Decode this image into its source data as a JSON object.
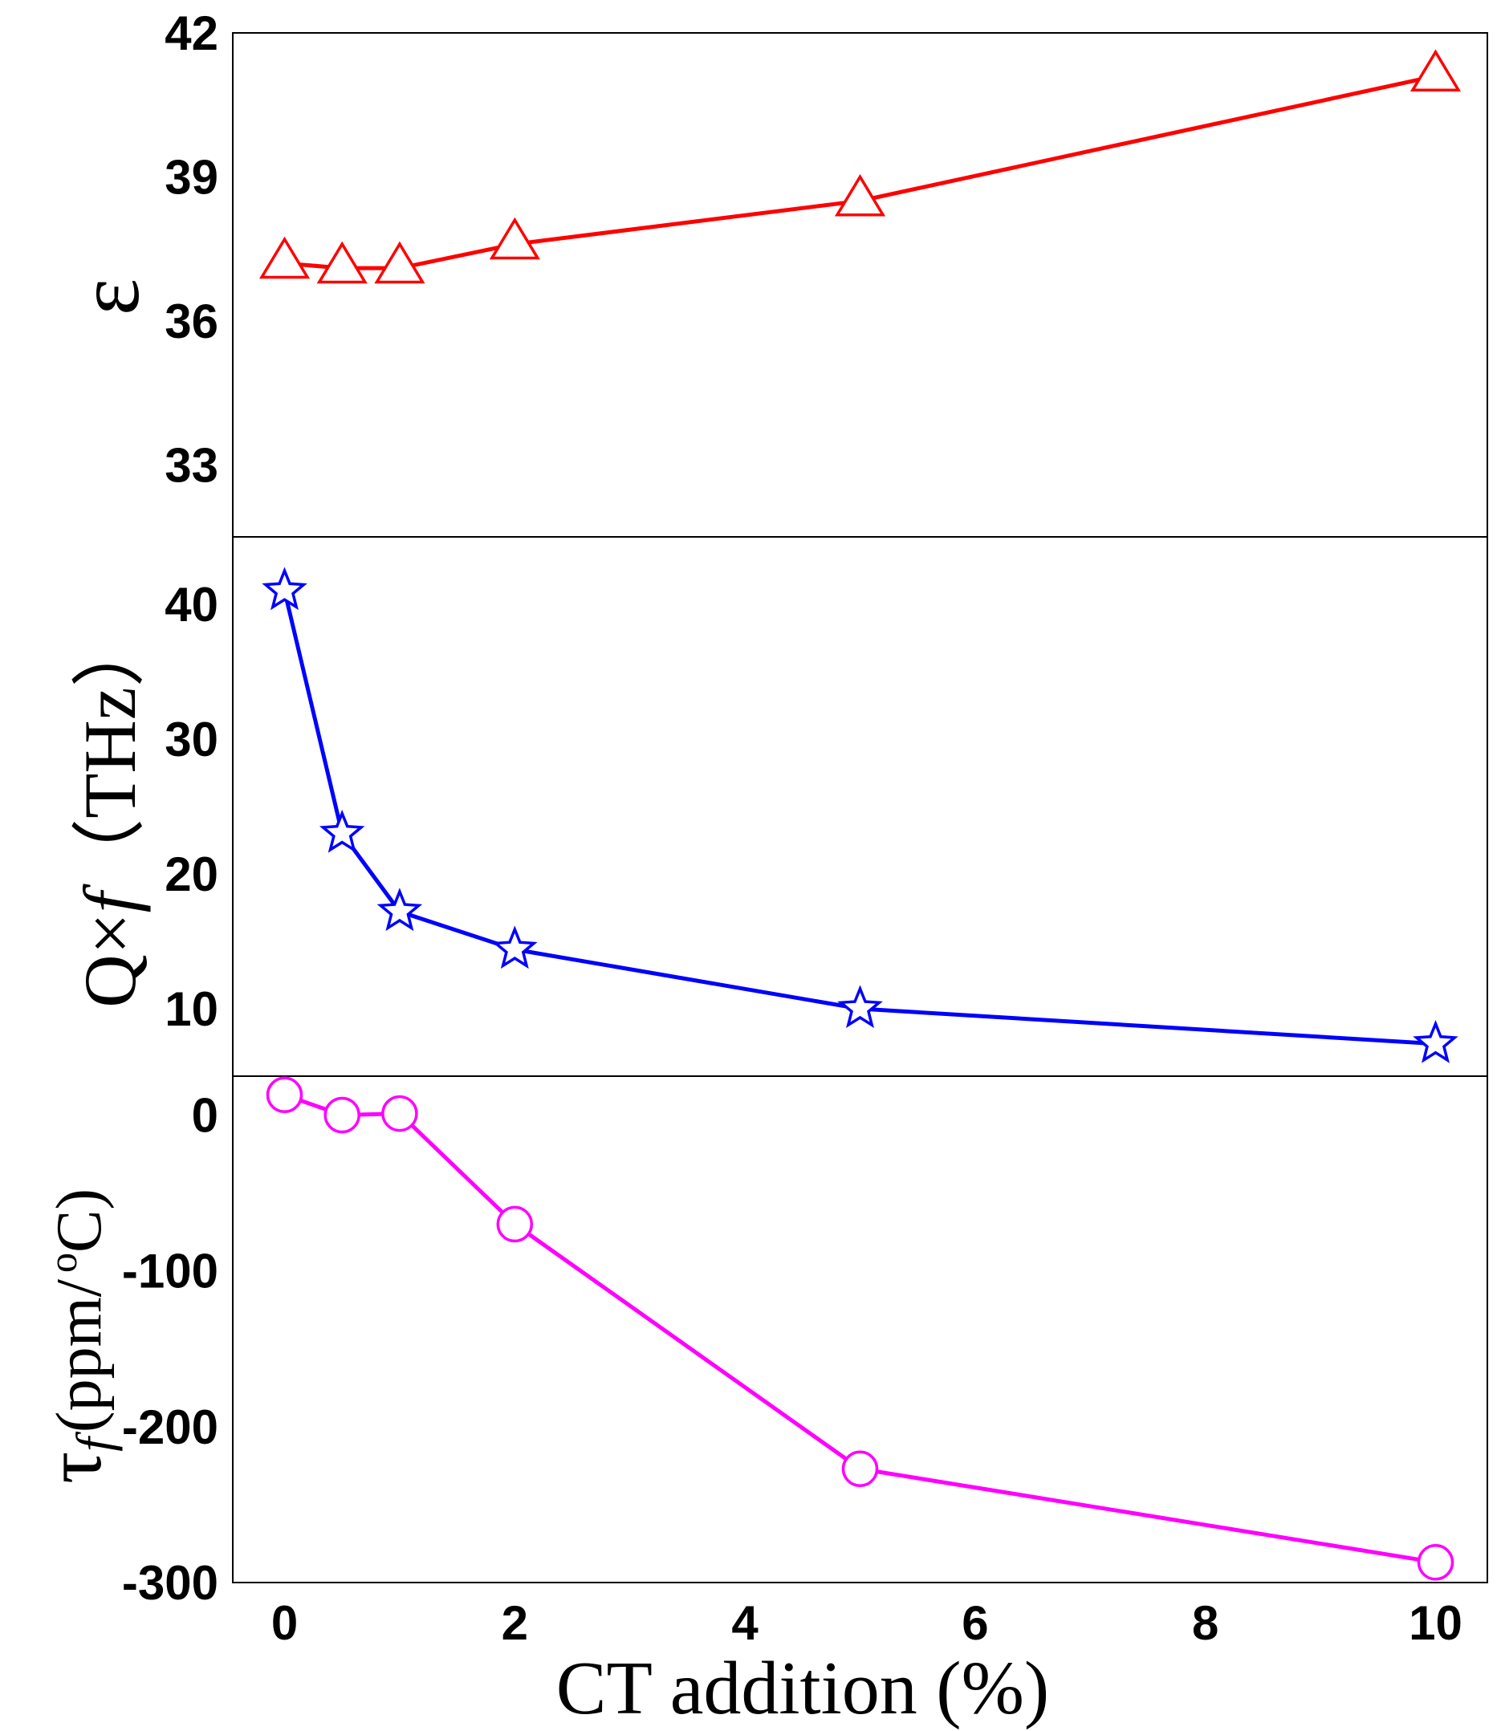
{
  "chart_data": [
    {
      "type": "line",
      "panel": "top",
      "ylabel": "ε",
      "xlabel": "",
      "ylim": [
        31.5,
        42
      ],
      "yticks": [
        "42",
        "39",
        "36",
        "33"
      ],
      "ytick_values": [
        42,
        39,
        36,
        33
      ],
      "series": [
        {
          "name": "ε",
          "color": "#ff0000",
          "marker": "triangle",
          "x": [
            0,
            0.5,
            1,
            2,
            5,
            10
          ],
          "values": [
            37.2,
            37.1,
            37.1,
            37.6,
            38.5,
            41.1
          ]
        }
      ]
    },
    {
      "type": "line",
      "panel": "middle",
      "ylabel_main": "Q×",
      "ylabel_italic": "f",
      "ylabel_unit": "（THz）",
      "ylim": [
        5,
        45
      ],
      "yticks": [
        "40",
        "30",
        "20",
        "10"
      ],
      "ytick_values": [
        40,
        30,
        20,
        10
      ],
      "series": [
        {
          "name": "Q×f",
          "color": "#0000ff",
          "marker": "star",
          "x": [
            0,
            0.5,
            1,
            2,
            5,
            10
          ],
          "values": [
            41,
            23,
            17.2,
            14.4,
            10,
            7.4
          ]
        }
      ]
    },
    {
      "type": "line",
      "panel": "bottom",
      "ylabel_symbol": "τ",
      "ylabel_sub": "f",
      "ylabel_unit": "(ppm/",
      "ylabel_deg": "o",
      "ylabel_end": "C)",
      "ylim": [
        -300,
        25
      ],
      "yticks": [
        "0",
        "-100",
        "-200",
        "-300"
      ],
      "ytick_values": [
        0,
        -100,
        -200,
        -300
      ],
      "series": [
        {
          "name": "τf",
          "color": "#ff00ff",
          "marker": "circle",
          "x": [
            0,
            0.5,
            1,
            2,
            5,
            10
          ],
          "values": [
            13,
            0,
            1,
            -70,
            -227,
            -287
          ]
        }
      ]
    }
  ],
  "x_axis": {
    "label": "CT addition (%)",
    "xlim": [
      -0.45,
      10.45
    ],
    "ticks": [
      "0",
      "2",
      "4",
      "6",
      "8",
      "10"
    ],
    "tick_values": [
      0,
      2,
      4,
      6,
      8,
      10
    ]
  }
}
